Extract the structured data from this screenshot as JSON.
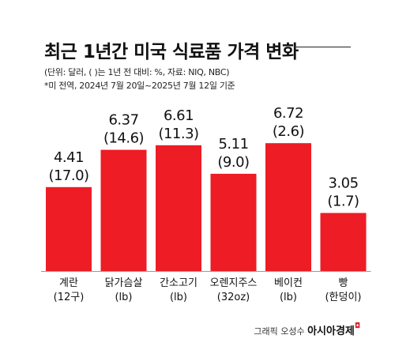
{
  "header": {
    "title": "최근 1년간 미국 식료품 가격 변화",
    "subtitle_unit": "(단위: 달러, ( )는 1년 전 대비: %, 자료: NIQ, NBC)",
    "subtitle_note": "*미 전역, 2024년 7월 20일~2025년 7월 12일 기준"
  },
  "footer": {
    "credit": "그래픽 오성수",
    "brand": "아시아경제"
  },
  "colors": {
    "bar": "#ee1c25",
    "text": "#111111",
    "baseline": "#999999"
  },
  "chart_data": {
    "type": "bar",
    "title": "최근 1년간 미국 식료품 가격 변화",
    "categories": [
      [
        "계란",
        "(12구)"
      ],
      [
        "닭가슴살",
        "(lb)"
      ],
      [
        "간소고기",
        "(lb)"
      ],
      [
        "오렌지주스",
        "(32oz)"
      ],
      [
        "베이컨",
        "(lb)"
      ],
      [
        "빵",
        "(한덩이)"
      ]
    ],
    "series": [
      {
        "values": [
          4.41,
          6.37,
          6.61,
          5.11,
          6.72,
          3.05
        ]
      }
    ],
    "value_labels": [
      "4.41",
      "6.37",
      "6.61",
      "5.11",
      "6.72",
      "3.05"
    ],
    "change_labels": [
      "(17.0)",
      "(14.6)",
      "(11.3)",
      "(9.0)",
      "(2.6)",
      "(1.7)"
    ],
    "ylim": [
      0,
      7.6
    ],
    "grid": false
  }
}
